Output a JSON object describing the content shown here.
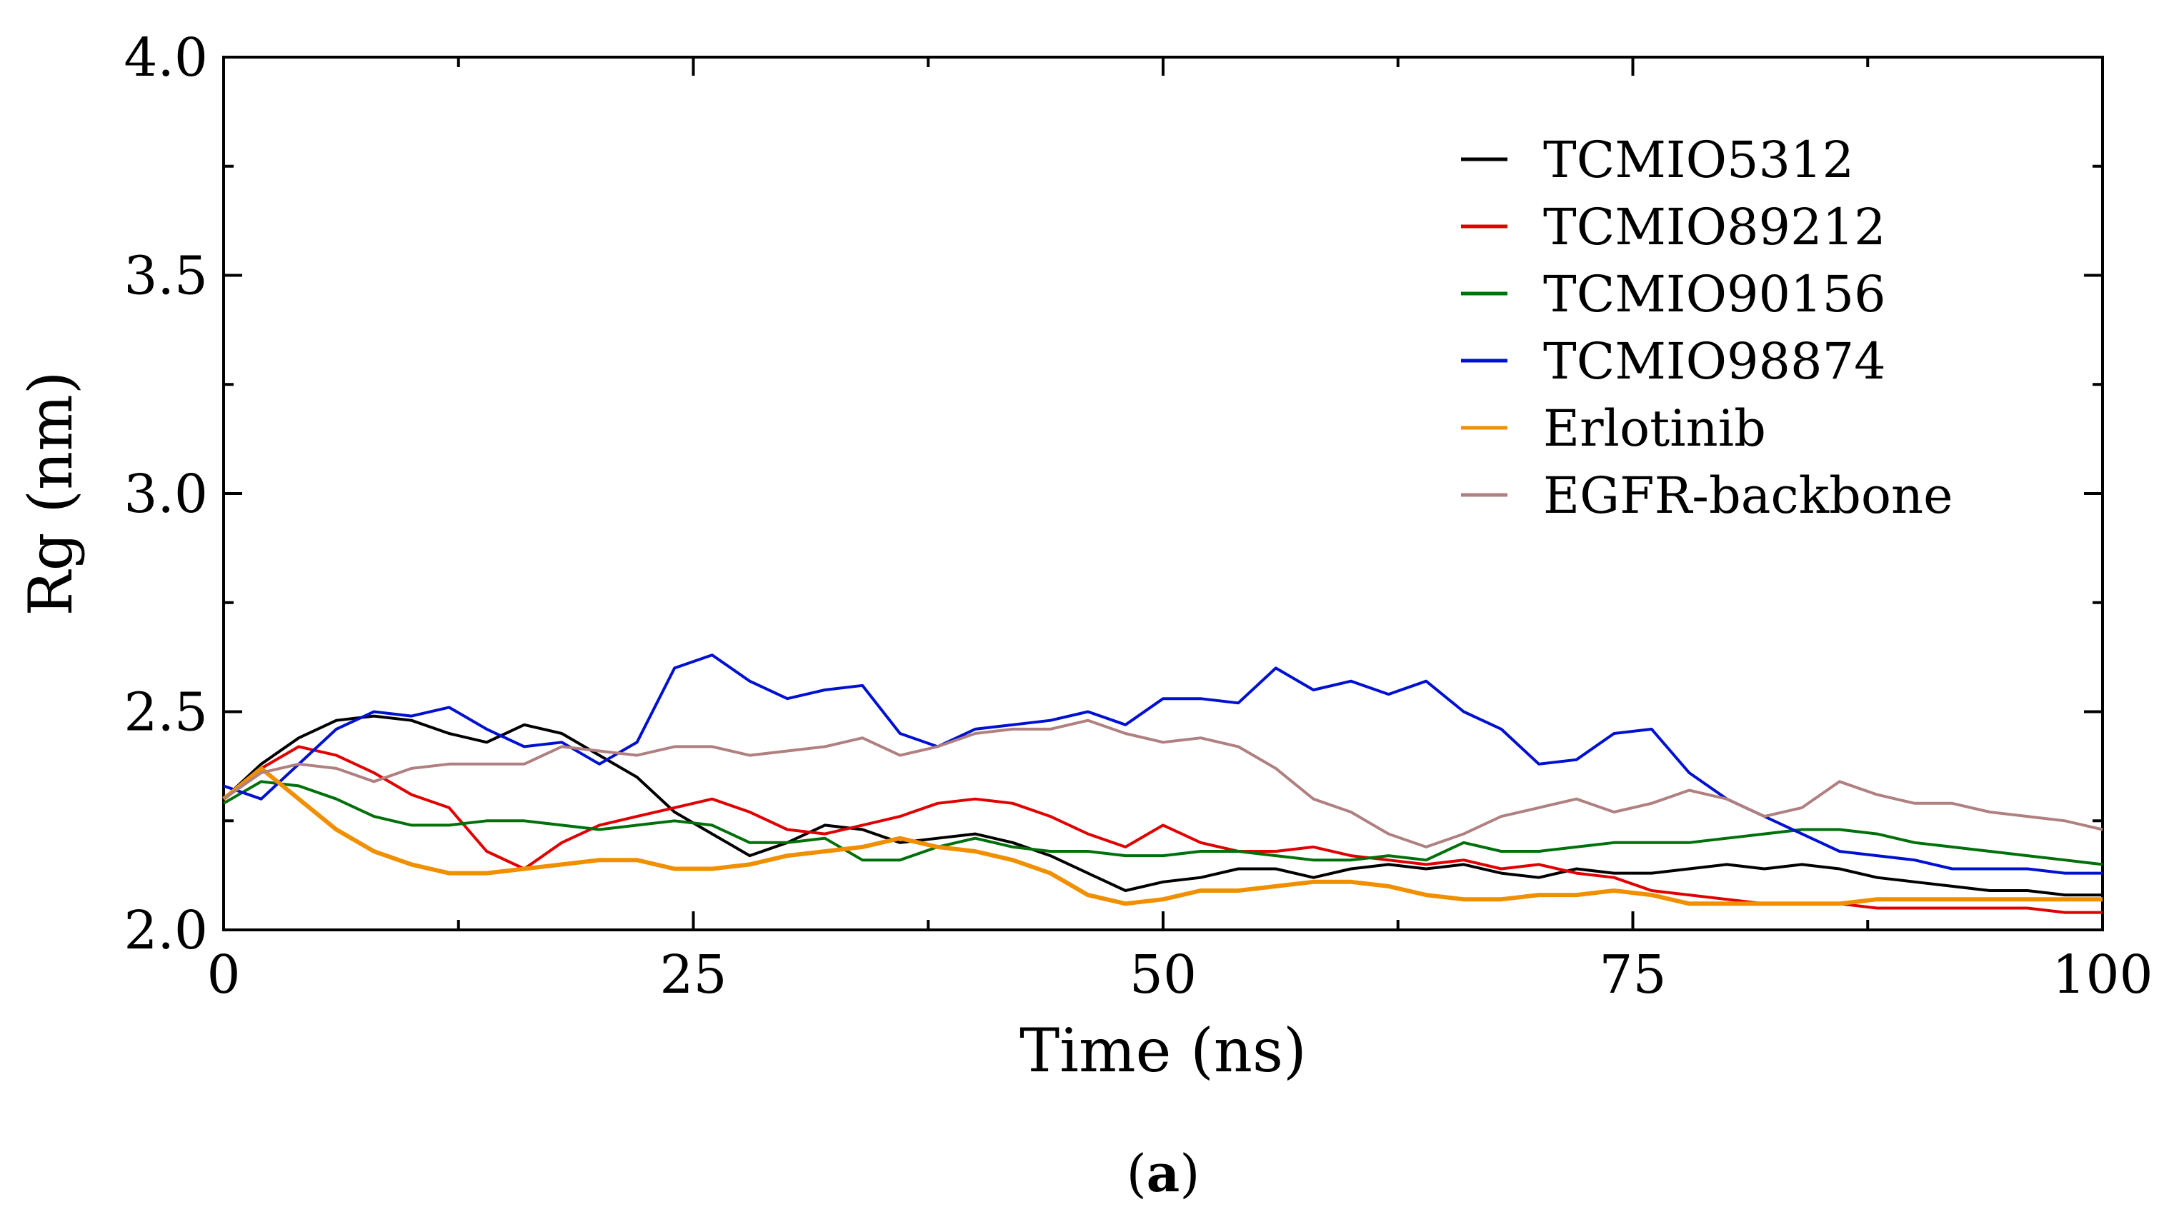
{
  "caption": {
    "open": "(",
    "letter": "a",
    "close": ")"
  },
  "chart_data": {
    "type": "line",
    "title": "",
    "xlabel": "Time (ns)",
    "ylabel": "Rg (nm)",
    "xlim": [
      0,
      100
    ],
    "ylim": [
      2.0,
      4.0
    ],
    "xticks": [
      "0",
      "25",
      "50",
      "75",
      "100"
    ],
    "yticks": [
      "2.0",
      "2.5",
      "3.0",
      "3.5",
      "4.0"
    ],
    "grid": false,
    "legend_position": "top-right",
    "series": [
      {
        "name": "TCMIO5312",
        "color": "#000000",
        "x": [
          0,
          2,
          4,
          6,
          8,
          10,
          12,
          14,
          16,
          18,
          20,
          22,
          24,
          26,
          28,
          30,
          32,
          34,
          36,
          38,
          40,
          42,
          44,
          46,
          48,
          50,
          52,
          54,
          56,
          58,
          60,
          62,
          64,
          66,
          68,
          70,
          72,
          74,
          76,
          78,
          80,
          82,
          84,
          86,
          88,
          90,
          92,
          94,
          96,
          98,
          100
        ],
        "y": [
          2.3,
          2.38,
          2.44,
          2.48,
          2.49,
          2.48,
          2.45,
          2.43,
          2.47,
          2.45,
          2.4,
          2.35,
          2.27,
          2.22,
          2.17,
          2.2,
          2.24,
          2.23,
          2.2,
          2.21,
          2.22,
          2.2,
          2.17,
          2.13,
          2.09,
          2.11,
          2.12,
          2.14,
          2.14,
          2.12,
          2.14,
          2.15,
          2.14,
          2.15,
          2.13,
          2.12,
          2.14,
          2.13,
          2.13,
          2.14,
          2.15,
          2.14,
          2.15,
          2.14,
          2.12,
          2.11,
          2.1,
          2.09,
          2.09,
          2.08,
          2.08
        ]
      },
      {
        "name": "TCMIO89212",
        "color": "#e00000",
        "x": [
          0,
          2,
          4,
          6,
          8,
          10,
          12,
          14,
          16,
          18,
          20,
          22,
          24,
          26,
          28,
          30,
          32,
          34,
          36,
          38,
          40,
          42,
          44,
          46,
          48,
          50,
          52,
          54,
          56,
          58,
          60,
          62,
          64,
          66,
          68,
          70,
          72,
          74,
          76,
          78,
          80,
          82,
          84,
          86,
          88,
          90,
          92,
          94,
          96,
          98,
          100
        ],
        "y": [
          2.3,
          2.37,
          2.42,
          2.4,
          2.36,
          2.31,
          2.28,
          2.18,
          2.14,
          2.2,
          2.24,
          2.26,
          2.28,
          2.3,
          2.27,
          2.23,
          2.22,
          2.24,
          2.26,
          2.29,
          2.3,
          2.29,
          2.26,
          2.22,
          2.19,
          2.24,
          2.2,
          2.18,
          2.18,
          2.19,
          2.17,
          2.16,
          2.15,
          2.16,
          2.14,
          2.15,
          2.13,
          2.12,
          2.09,
          2.08,
          2.07,
          2.06,
          2.06,
          2.06,
          2.05,
          2.05,
          2.05,
          2.05,
          2.05,
          2.04,
          2.04
        ]
      },
      {
        "name": "TCMIO90156",
        "color": "#00700a",
        "x": [
          0,
          2,
          4,
          6,
          8,
          10,
          12,
          14,
          16,
          18,
          20,
          22,
          24,
          26,
          28,
          30,
          32,
          34,
          36,
          38,
          40,
          42,
          44,
          46,
          48,
          50,
          52,
          54,
          56,
          58,
          60,
          62,
          64,
          66,
          68,
          70,
          72,
          74,
          76,
          78,
          80,
          82,
          84,
          86,
          88,
          90,
          92,
          94,
          96,
          98,
          100
        ],
        "y": [
          2.29,
          2.34,
          2.33,
          2.3,
          2.26,
          2.24,
          2.24,
          2.25,
          2.25,
          2.24,
          2.23,
          2.24,
          2.25,
          2.24,
          2.2,
          2.2,
          2.21,
          2.16,
          2.16,
          2.19,
          2.21,
          2.19,
          2.18,
          2.18,
          2.17,
          2.17,
          2.18,
          2.18,
          2.17,
          2.16,
          2.16,
          2.17,
          2.16,
          2.2,
          2.18,
          2.18,
          2.19,
          2.2,
          2.2,
          2.2,
          2.21,
          2.22,
          2.23,
          2.23,
          2.22,
          2.2,
          2.19,
          2.18,
          2.17,
          2.16,
          2.15
        ]
      },
      {
        "name": "TCMIO98874",
        "color": "#0010d0",
        "x": [
          0,
          2,
          4,
          6,
          8,
          10,
          12,
          14,
          16,
          18,
          20,
          22,
          24,
          26,
          28,
          30,
          32,
          34,
          36,
          38,
          40,
          42,
          44,
          46,
          48,
          50,
          52,
          54,
          56,
          58,
          60,
          62,
          64,
          66,
          68,
          70,
          72,
          74,
          76,
          78,
          80,
          82,
          84,
          86,
          88,
          90,
          92,
          94,
          96,
          98,
          100
        ],
        "y": [
          2.33,
          2.3,
          2.38,
          2.46,
          2.5,
          2.49,
          2.51,
          2.46,
          2.42,
          2.43,
          2.38,
          2.43,
          2.6,
          2.63,
          2.57,
          2.53,
          2.55,
          2.56,
          2.45,
          2.42,
          2.46,
          2.47,
          2.48,
          2.5,
          2.47,
          2.53,
          2.53,
          2.52,
          2.6,
          2.55,
          2.57,
          2.54,
          2.57,
          2.5,
          2.46,
          2.38,
          2.39,
          2.45,
          2.46,
          2.36,
          2.3,
          2.26,
          2.22,
          2.18,
          2.17,
          2.16,
          2.14,
          2.14,
          2.14,
          2.13,
          2.13
        ]
      },
      {
        "name": "Erlotinib",
        "color": "#f09000",
        "x": [
          0,
          2,
          4,
          6,
          8,
          10,
          12,
          14,
          16,
          18,
          20,
          22,
          24,
          26,
          28,
          30,
          32,
          34,
          36,
          38,
          40,
          42,
          44,
          46,
          48,
          50,
          52,
          54,
          56,
          58,
          60,
          62,
          64,
          66,
          68,
          70,
          72,
          74,
          76,
          78,
          80,
          82,
          84,
          86,
          88,
          90,
          92,
          94,
          96,
          98,
          100
        ],
        "y": [
          2.3,
          2.37,
          2.3,
          2.23,
          2.18,
          2.15,
          2.13,
          2.13,
          2.14,
          2.15,
          2.16,
          2.16,
          2.14,
          2.14,
          2.15,
          2.17,
          2.18,
          2.19,
          2.21,
          2.19,
          2.18,
          2.16,
          2.13,
          2.08,
          2.06,
          2.07,
          2.09,
          2.09,
          2.1,
          2.11,
          2.11,
          2.1,
          2.08,
          2.07,
          2.07,
          2.08,
          2.08,
          2.09,
          2.08,
          2.06,
          2.06,
          2.06,
          2.06,
          2.06,
          2.07,
          2.07,
          2.07,
          2.07,
          2.07,
          2.07,
          2.07
        ]
      },
      {
        "name": "EGFR-backbone",
        "color": "#b08080",
        "x": [
          0,
          2,
          4,
          6,
          8,
          10,
          12,
          14,
          16,
          18,
          20,
          22,
          24,
          26,
          28,
          30,
          32,
          34,
          36,
          38,
          40,
          42,
          44,
          46,
          48,
          50,
          52,
          54,
          56,
          58,
          60,
          62,
          64,
          66,
          68,
          70,
          72,
          74,
          76,
          78,
          80,
          82,
          84,
          86,
          88,
          90,
          92,
          94,
          96,
          98,
          100
        ],
        "y": [
          2.3,
          2.36,
          2.38,
          2.37,
          2.34,
          2.37,
          2.38,
          2.38,
          2.38,
          2.42,
          2.41,
          2.4,
          2.42,
          2.42,
          2.4,
          2.41,
          2.42,
          2.44,
          2.4,
          2.42,
          2.45,
          2.46,
          2.46,
          2.48,
          2.45,
          2.43,
          2.44,
          2.42,
          2.37,
          2.3,
          2.27,
          2.22,
          2.19,
          2.22,
          2.26,
          2.28,
          2.3,
          2.27,
          2.29,
          2.32,
          2.3,
          2.26,
          2.28,
          2.34,
          2.31,
          2.29,
          2.29,
          2.27,
          2.26,
          2.25,
          2.23
        ]
      }
    ]
  }
}
